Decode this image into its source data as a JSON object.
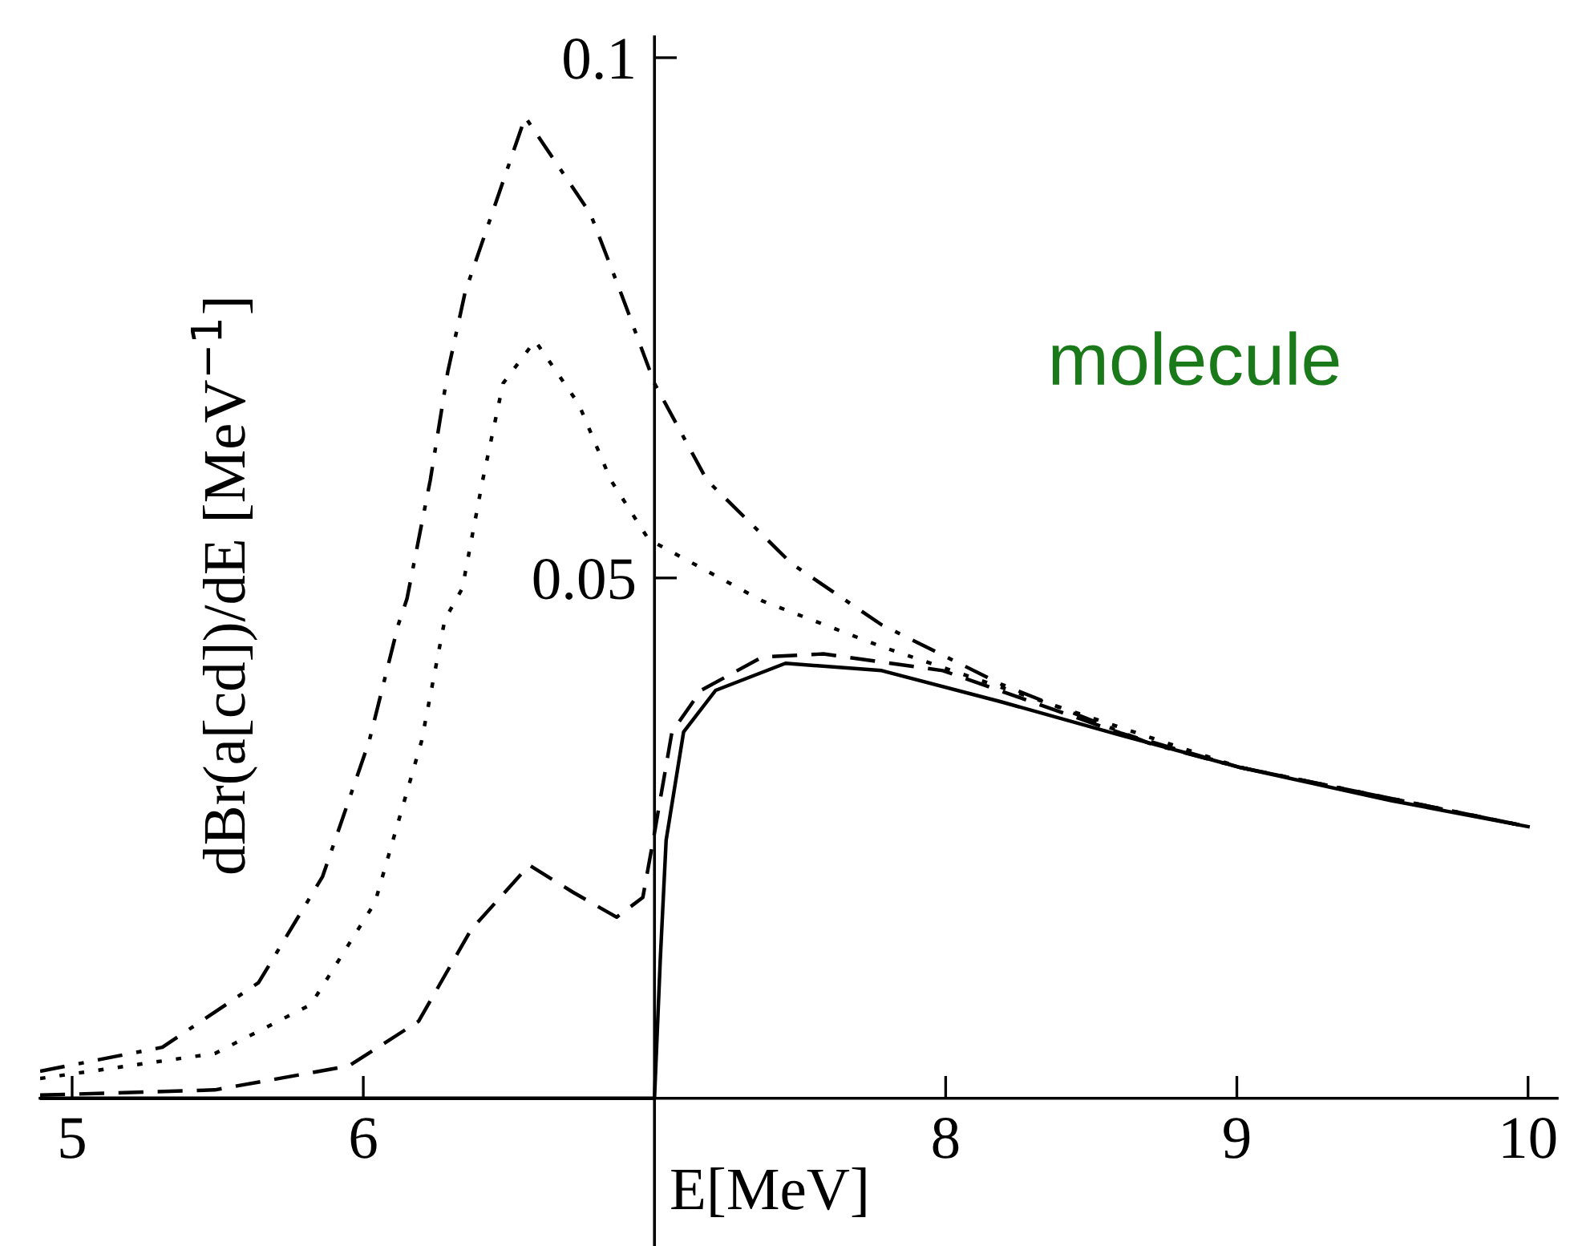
{
  "chart_data": {
    "type": "line",
    "xlabel": "E[MeV]",
    "ylabel": "dBr(a[cd])/dE [MeV$^{−1}$]",
    "annotations": [
      "molecule"
    ],
    "xlim": [
      4.89,
      10.1
    ],
    "ylim": [
      -0.0142,
      0.102
    ],
    "xticks": [
      5,
      6,
      8,
      9,
      10
    ],
    "yticks": [
      0.05,
      0.1
    ],
    "grid": false,
    "legend": false,
    "series": [
      {
        "color": "#000000",
        "line_style": "dashdot",
        "x": [
          4.89,
          5.31,
          5.64,
          5.86,
          6.02,
          6.12,
          6.15,
          6.23,
          6.29,
          6.35,
          6.556,
          6.78,
          6.89,
          7.0,
          7.18,
          7.47,
          7.78,
          8.19,
          8.7,
          9.01,
          10.0
        ],
        "values": [
          0.0026,
          0.0049,
          0.0111,
          0.0213,
          0.0343,
          0.0455,
          0.048,
          0.0594,
          0.0698,
          0.0775,
          0.0943,
          0.085,
          0.077,
          0.0687,
          0.0594,
          0.0514,
          0.0455,
          0.0398,
          0.0341,
          0.0318,
          0.0261
        ]
      },
      {
        "color": "#000000",
        "line_style": "dotted",
        "x": [
          4.89,
          5.49,
          5.82,
          6.04,
          6.2,
          6.28,
          6.34,
          6.41,
          6.48,
          6.59,
          6.74,
          6.85,
          6.98,
          7.37,
          7.78,
          8.4,
          9.01,
          10.0
        ],
        "values": [
          0.0019,
          0.0043,
          0.009,
          0.0188,
          0.0343,
          0.046,
          0.049,
          0.0594,
          0.0687,
          0.0728,
          0.0667,
          0.0594,
          0.0537,
          0.0478,
          0.0434,
          0.0375,
          0.0318,
          0.0261
        ]
      },
      {
        "color": "#000000",
        "line_style": "dashed",
        "x": [
          4.89,
          5.49,
          5.95,
          6.19,
          6.37,
          6.57,
          6.72,
          6.87,
          6.96,
          7.0,
          7.06,
          7.16,
          7.37,
          7.58,
          7.99,
          8.6,
          9.01,
          10.0
        ],
        "values": [
          0.0003,
          0.0008,
          0.0031,
          0.0074,
          0.0162,
          0.0224,
          0.0198,
          0.0174,
          0.0193,
          0.0255,
          0.0352,
          0.0392,
          0.0424,
          0.0427,
          0.0411,
          0.0351,
          0.0318,
          0.0261
        ]
      },
      {
        "color": "#000000",
        "line_style": "solid",
        "x": [
          4.89,
          7.0,
          7.02,
          7.04,
          7.1,
          7.21,
          7.45,
          7.78,
          8.19,
          8.6,
          9.01,
          9.53,
          10.0
        ],
        "values": [
          0,
          0,
          0.0134,
          0.0248,
          0.0352,
          0.0392,
          0.0418,
          0.0411,
          0.0381,
          0.0349,
          0.0318,
          0.0286,
          0.0261
        ]
      }
    ]
  }
}
